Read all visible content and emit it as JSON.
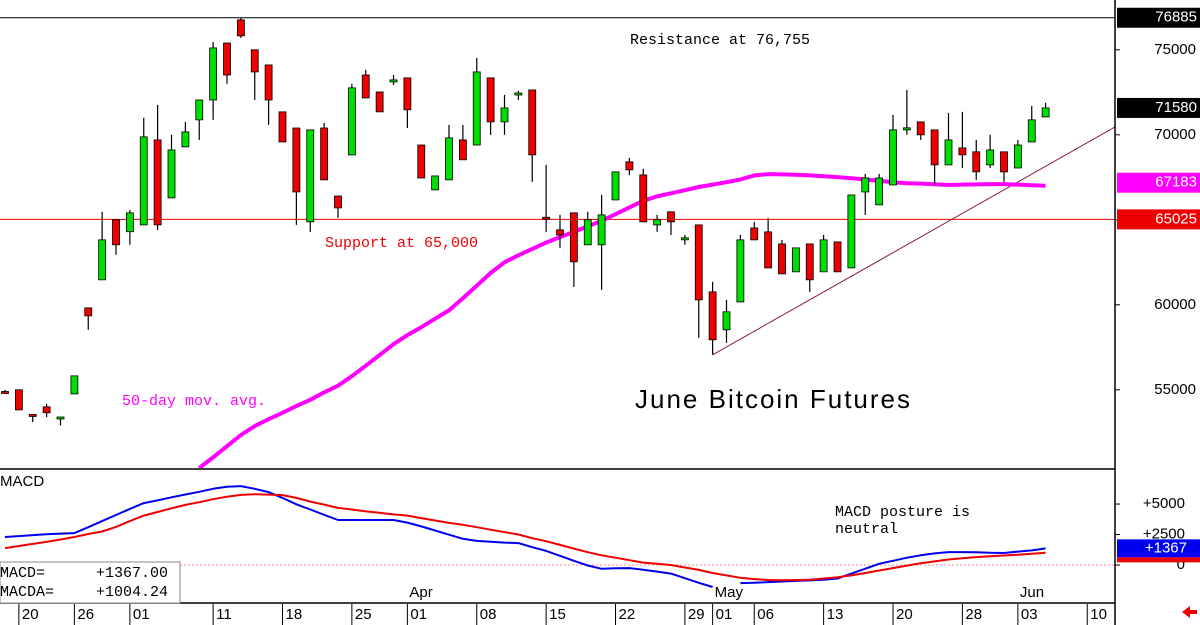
{
  "chart_data": [
    {
      "type": "candlestick",
      "title": "June Bitcoin Futures",
      "annotations": {
        "resistance": "Resistance at 76,755",
        "support": "Support at 65,000",
        "ma_label": "50-day mov. avg."
      },
      "categories": [
        null,
        "20",
        null,
        null,
        null,
        "26",
        null,
        null,
        null,
        "01",
        null,
        null,
        null,
        null,
        null,
        "11",
        null,
        null,
        null,
        null,
        "18",
        null,
        null,
        null,
        null,
        "25",
        null,
        null,
        null,
        "01",
        null,
        null,
        null,
        null,
        "08",
        null,
        null,
        null,
        null,
        "15",
        null,
        null,
        null,
        null,
        "22",
        null,
        null,
        null,
        null,
        "29",
        null,
        "01",
        null,
        null,
        "06",
        null,
        null,
        null,
        null,
        "13",
        null,
        null,
        null,
        null,
        "20",
        null,
        null,
        null,
        null,
        "28",
        null,
        null,
        null,
        "03",
        null,
        null,
        null,
        null,
        "10",
        null,
        null
      ],
      "months": [
        null,
        null,
        null,
        null,
        null,
        null,
        null,
        null,
        null,
        null,
        null,
        null,
        null,
        null,
        null,
        null,
        null,
        null,
        null,
        null,
        null,
        null,
        null,
        null,
        null,
        null,
        null,
        null,
        null,
        "Apr",
        null,
        null,
        null,
        null,
        null,
        null,
        null,
        null,
        null,
        null,
        null,
        null,
        null,
        null,
        null,
        null,
        null,
        null,
        null,
        null,
        null,
        "May",
        null,
        null,
        null,
        null,
        null,
        null,
        null,
        null,
        null,
        null,
        null,
        null,
        null,
        null,
        null,
        null,
        null,
        null,
        null,
        null,
        null,
        "Jun",
        null,
        null,
        null,
        null,
        null,
        null,
        null
      ],
      "candles": {
        "open": [
          54900,
          55000,
          53550,
          54000,
          53350,
          54760,
          59820,
          61470,
          65000,
          64300,
          64700,
          69700,
          66290,
          69290,
          70880,
          72050,
          75400,
          76760,
          75000,
          74110,
          71350,
          70400,
          64880,
          70400,
          66400,
          68820,
          73520,
          72520,
          73170,
          73350,
          69400,
          66760,
          67350,
          69700,
          69400,
          73350,
          70760,
          72410,
          72640,
          65150,
          64410,
          65410,
          63530,
          63530,
          66170,
          68410,
          67640,
          64700,
          65470,
          63900,
          64700,
          60760,
          58530,
          60170,
          64520,
          64290,
          63580,
          61940,
          63580,
          61940,
          63700,
          62170,
          66640,
          65880,
          67050,
          70360,
          70760,
          70290,
          68230,
          69230,
          69000,
          68230,
          69000,
          68050,
          69580,
          71050,
          null,
          null,
          null,
          null,
          null
        ],
        "high": [
          55000,
          55000,
          53550,
          54170,
          53400,
          55820,
          59820,
          65470,
          65000,
          65580,
          71000,
          71760,
          70000,
          70760,
          72050,
          75460,
          75400,
          76900,
          75000,
          74110,
          71350,
          70400,
          70290,
          70700,
          66400,
          73000,
          73820,
          72520,
          73520,
          73350,
          69400,
          67580,
          70580,
          70580,
          74520,
          73350,
          72350,
          72600,
          72640,
          68230,
          65290,
          65410,
          65470,
          66470,
          67820,
          68640,
          68000,
          65290,
          65470,
          64110,
          64700,
          61350,
          60290,
          64110,
          64880,
          65110,
          63820,
          63350,
          63580,
          64110,
          63700,
          66460,
          67700,
          67700,
          71170,
          72640,
          70760,
          70290,
          71290,
          71350,
          69700,
          70000,
          69000,
          69700,
          71700,
          71880,
          null,
          null,
          null,
          null,
          null
        ],
        "low": [
          54800,
          53820,
          53100,
          53400,
          52900,
          54760,
          58530,
          61470,
          62940,
          63530,
          64700,
          64400,
          66290,
          69290,
          69700,
          70880,
          73000,
          75700,
          72050,
          70580,
          69580,
          64700,
          64290,
          67350,
          65110,
          68820,
          72170,
          71350,
          72930,
          70400,
          67460,
          66760,
          67350,
          68530,
          69400,
          70000,
          70000,
          72050,
          67230,
          64290,
          63350,
          61050,
          63530,
          60880,
          66170,
          67640,
          64880,
          64290,
          64110,
          63530,
          58060,
          57060,
          57760,
          60170,
          63820,
          62170,
          61820,
          61940,
          60760,
          61940,
          61940,
          62170,
          65290,
          65880,
          67050,
          70000,
          69700,
          67050,
          68230,
          68050,
          67350,
          68050,
          67230,
          68050,
          69580,
          71050,
          null,
          null,
          null,
          null,
          null
        ],
        "close": [
          54800,
          53820,
          53500,
          53650,
          53400,
          55820,
          59350,
          63820,
          63530,
          65410,
          69880,
          64700,
          69110,
          70170,
          72050,
          75110,
          73520,
          75820,
          73700,
          72050,
          69580,
          66640,
          70290,
          67350,
          65700,
          72760,
          72170,
          71350,
          73230,
          71470,
          67460,
          67580,
          69820,
          68530,
          73700,
          70760,
          71580,
          72460,
          68820,
          65110,
          64110,
          62530,
          65000,
          65290,
          67820,
          67940,
          64880,
          65000,
          64880,
          63940,
          60290,
          57940,
          59590,
          63820,
          63820,
          62170,
          61820,
          63350,
          61470,
          63820,
          61940,
          66460,
          67460,
          67460,
          70290,
          70410,
          70000,
          68230,
          69700,
          68820,
          67820,
          69110,
          67820,
          69400,
          70880,
          71580,
          null,
          null,
          null,
          null,
          null
        ]
      },
      "up_color": "#00dd00",
      "down_color": "#ee0000",
      "ma": {
        "color": "#ff00ff",
        "values": [
          null,
          null,
          null,
          null,
          null,
          null,
          null,
          null,
          null,
          null,
          null,
          null,
          null,
          null,
          50400,
          51030,
          51680,
          52340,
          52870,
          53270,
          53650,
          54050,
          54410,
          54850,
          55240,
          55800,
          56420,
          57040,
          57680,
          58220,
          58680,
          59180,
          59670,
          60390,
          61130,
          61870,
          62500,
          62910,
          63290,
          63660,
          63980,
          64290,
          64610,
          64940,
          65330,
          65730,
          66120,
          66380,
          66560,
          66740,
          66930,
          67070,
          67210,
          67370,
          67610,
          67690,
          67670,
          67650,
          67610,
          67560,
          67510,
          67450,
          67370,
          67290,
          67210,
          67150,
          67130,
          67090,
          67050,
          67070,
          67080,
          67100,
          67100,
          67070,
          67030,
          67000,
          null,
          null,
          null,
          null,
          null
        ]
      },
      "trendline": {
        "color": "#8b1a3a",
        "x": [
          51,
          80
        ],
        "y": [
          57060,
          70460
        ]
      },
      "ylim": [
        50400,
        77930
      ],
      "yticks": [
        55000,
        60000,
        65000,
        70000,
        75000
      ],
      "markers": [
        {
          "value": 76885,
          "bg": "#000000",
          "fg": "#ffffff",
          "line_color": "#000000"
        },
        {
          "value": 71580,
          "bg": "#000000",
          "fg": "#ffffff"
        },
        {
          "value": 67183,
          "bg": "#ff00ff",
          "fg": "#ffffff"
        },
        {
          "value": 65025,
          "bg": "#ee0000",
          "fg": "#ffffff",
          "line_color": "#ee0000"
        }
      ]
    },
    {
      "type": "line",
      "title": "MACD",
      "note": [
        "MACD posture is",
        "neutral"
      ],
      "readout": [
        [
          "MACD=",
          "+1367.00"
        ],
        [
          "MACDA=",
          "+1004.24"
        ]
      ],
      "series": [
        {
          "color": "#0000ee",
          "values": [
            2300,
            2370,
            2450,
            2530,
            2580,
            2620,
            3100,
            3600,
            4100,
            4600,
            5080,
            5300,
            5550,
            5780,
            6000,
            6250,
            6420,
            6470,
            6250,
            5980,
            5500,
            4980,
            4550,
            4120,
            3690,
            3690,
            3690,
            3690,
            3690,
            3480,
            3170,
            2830,
            2490,
            2150,
            1980,
            1910,
            1840,
            1800,
            1460,
            1160,
            760,
            350,
            -40,
            -310,
            -270,
            -250,
            -380,
            -540,
            -700,
            -1080,
            -1460,
            -1800,
            null,
            -1480,
            -1450,
            -1400,
            -1350,
            -1300,
            -1260,
            -1200,
            -1100,
            -700,
            -300,
            100,
            350,
            600,
            800,
            950,
            1060,
            1060,
            1050,
            1000,
            990,
            1100,
            1200,
            1367,
            null,
            null,
            null,
            null,
            null
          ]
        },
        {
          "color": "#ee0000",
          "values": [
            1390,
            1560,
            1730,
            1900,
            2090,
            2300,
            2540,
            2750,
            3130,
            3600,
            4050,
            4350,
            4650,
            4930,
            5150,
            5400,
            5600,
            5750,
            5810,
            5770,
            5730,
            5500,
            5200,
            4950,
            4680,
            4550,
            4400,
            4280,
            4150,
            4050,
            3850,
            3650,
            3450,
            3300,
            3100,
            2900,
            2700,
            2500,
            2200,
            1950,
            1650,
            1350,
            1050,
            800,
            600,
            400,
            200,
            100,
            0,
            -200,
            -400,
            -650,
            -850,
            -1050,
            -1150,
            -1230,
            -1240,
            -1230,
            -1200,
            -1100,
            -1000,
            -850,
            -650,
            -450,
            -250,
            -50,
            150,
            300,
            450,
            550,
            650,
            720,
            780,
            850,
            920,
            1004.24,
            null,
            null,
            null,
            null,
            null
          ]
        }
      ],
      "ylim": [
        -3030,
        7790
      ],
      "yticks": [
        {
          "value": 5000,
          "label": "+5000"
        },
        {
          "value": 2500,
          "label": "+2500"
        },
        0
      ],
      "marker": {
        "value": 1367,
        "label": "+1367",
        "bg": "#0000ee",
        "fg": "#ffffff"
      }
    }
  ]
}
